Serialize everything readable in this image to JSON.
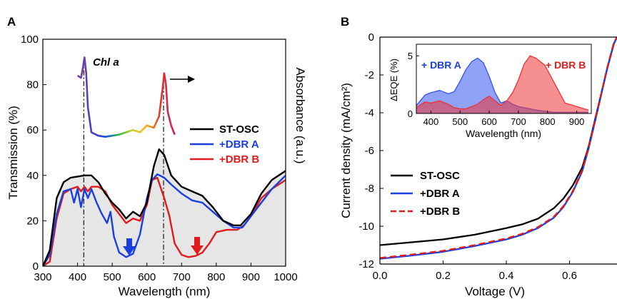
{
  "panels": {
    "a_letter": "A",
    "b_letter": "B"
  },
  "chart_data": [
    {
      "panel": "A",
      "type": "line",
      "xlabel": "Wavelength (nm)",
      "ylabel": "Transmission (%)",
      "ylabel_right": "Absorbance (a.u.)",
      "xlim": [
        300,
        1000
      ],
      "ylim": [
        0,
        100
      ],
      "xticks": [
        "300",
        "400",
        "500",
        "600",
        "700",
        "800",
        "900",
        "1000"
      ],
      "yticks": [
        "0",
        "20",
        "40",
        "60",
        "80",
        "100"
      ],
      "legend_position": "center-right",
      "series": [
        {
          "name": "ST-OSC",
          "color": "#000000",
          "x": [
            300,
            320,
            340,
            360,
            380,
            400,
            420,
            440,
            460,
            480,
            500,
            520,
            540,
            560,
            580,
            600,
            620,
            635,
            650,
            670,
            700,
            730,
            760,
            790,
            820,
            850,
            870,
            900,
            930,
            960,
            1000
          ],
          "y": [
            0,
            7,
            30,
            37,
            39,
            39.5,
            40,
            40,
            37,
            32,
            28,
            25,
            21,
            24,
            22,
            28,
            44,
            51.5,
            49,
            40,
            35,
            33,
            31,
            26,
            20,
            18,
            18,
            23,
            32,
            38,
            42
          ]
        },
        {
          "name": "+DBR A",
          "color": "#1a3fe0",
          "x": [
            300,
            320,
            340,
            360,
            380,
            390,
            400,
            410,
            420,
            430,
            440,
            455,
            470,
            485,
            495,
            505,
            520,
            540,
            560,
            580,
            600,
            615,
            630,
            650,
            670,
            700,
            730,
            760,
            790,
            820,
            850,
            875,
            900,
            930,
            960,
            1000
          ],
          "y": [
            0,
            5,
            23,
            33,
            34,
            28,
            34,
            26,
            34,
            30,
            34,
            28,
            23,
            19,
            24,
            13,
            6,
            4,
            5.5,
            14,
            30,
            38,
            40.5,
            39,
            36,
            32,
            29,
            28,
            24,
            20,
            17,
            17,
            22,
            28,
            34,
            40
          ]
        },
        {
          "name": "+DBR B",
          "color": "#e01b1b",
          "x": [
            300,
            320,
            340,
            360,
            380,
            400,
            410,
            420,
            430,
            440,
            460,
            480,
            500,
            520,
            540,
            560,
            580,
            600,
            615,
            630,
            650,
            665,
            680,
            700,
            720,
            740,
            760,
            780,
            800,
            830,
            860,
            880,
            900,
            930,
            960,
            1000
          ],
          "y": [
            0,
            2,
            21,
            32,
            34,
            35,
            33,
            35,
            33,
            35,
            35,
            33,
            27,
            23,
            19,
            21,
            20,
            27,
            38,
            39,
            30,
            22,
            10,
            5,
            4,
            4.5,
            6,
            10,
            15,
            16,
            16,
            18,
            22,
            30,
            34,
            38
          ]
        },
        {
          "name": "Chl a",
          "type": "absorbance",
          "x": [
            400,
            410,
            415,
            420,
            425,
            430,
            440,
            460,
            480,
            500,
            520,
            540,
            560,
            580,
            600,
            620,
            635,
            645,
            650,
            655,
            660,
            670,
            680
          ],
          "y": [
            84,
            83,
            87,
            92,
            85,
            70,
            59,
            57.5,
            57,
            57.5,
            58,
            59,
            60,
            59,
            62,
            61,
            66,
            78,
            85,
            80,
            68,
            62,
            58
          ]
        }
      ],
      "annotations": [
        "Chl a"
      ]
    },
    {
      "panel": "B",
      "type": "line",
      "xlabel": "Voltage (V)",
      "ylabel": "Current density (mA/cm²)",
      "xlim": [
        0.0,
        0.75
      ],
      "ylim": [
        -12,
        0
      ],
      "xticks": [
        "0.0",
        "0.2",
        "0.4",
        "0.6"
      ],
      "yticks": [
        "0",
        "-2",
        "-4",
        "-6",
        "-8",
        "-10",
        "-12"
      ],
      "legend_position": "bottom-left",
      "series": [
        {
          "name": "ST-OSC",
          "color": "#000000",
          "dash": "solid",
          "x": [
            0,
            0.1,
            0.2,
            0.3,
            0.4,
            0.45,
            0.5,
            0.55,
            0.58,
            0.61,
            0.64,
            0.66,
            0.68,
            0.7,
            0.72,
            0.74,
            0.75
          ],
          "y": [
            -11.0,
            -10.85,
            -10.7,
            -10.45,
            -10.1,
            -9.9,
            -9.6,
            -9.05,
            -8.55,
            -7.85,
            -6.9,
            -5.8,
            -4.4,
            -3.0,
            -1.6,
            -0.35,
            0
          ]
        },
        {
          "name": "+DBR A",
          "color": "#1a3fe0",
          "dash": "solid",
          "x": [
            0,
            0.1,
            0.2,
            0.3,
            0.4,
            0.45,
            0.5,
            0.55,
            0.58,
            0.61,
            0.64,
            0.66,
            0.68,
            0.7,
            0.72,
            0.74,
            0.75
          ],
          "y": [
            -11.72,
            -11.55,
            -11.35,
            -11.05,
            -10.7,
            -10.45,
            -10.1,
            -9.55,
            -9.0,
            -8.2,
            -7.1,
            -5.9,
            -4.5,
            -3.05,
            -1.6,
            -0.35,
            0
          ]
        },
        {
          "name": "+DBR B",
          "color": "#e01b1b",
          "dash": "dashed",
          "x": [
            0,
            0.1,
            0.2,
            0.3,
            0.4,
            0.45,
            0.5,
            0.55,
            0.58,
            0.61,
            0.64,
            0.66,
            0.68,
            0.7,
            0.72,
            0.74,
            0.75
          ],
          "y": [
            -11.68,
            -11.5,
            -11.3,
            -11.0,
            -10.65,
            -10.4,
            -10.05,
            -9.5,
            -8.95,
            -8.15,
            -7.05,
            -5.85,
            -4.45,
            -3.0,
            -1.55,
            -0.3,
            0
          ]
        }
      ]
    },
    {
      "panel": "B-inset",
      "type": "area",
      "xlabel": "Wavelength (nm)",
      "ylabel": "ΔEQE (%)",
      "xlim": [
        350,
        950
      ],
      "ylim": [
        0,
        6
      ],
      "xticks": [
        "400",
        "500",
        "600",
        "700",
        "800",
        "900"
      ],
      "yticks": [
        "0",
        "5"
      ],
      "series": [
        {
          "name": "+ DBR A",
          "color": "#3355ee",
          "x": [
            350,
            380,
            400,
            430,
            460,
            480,
            500,
            520,
            540,
            560,
            580,
            600,
            620,
            640,
            660,
            680,
            700,
            720,
            740,
            760,
            790,
            820,
            860,
            900,
            940
          ],
          "y": [
            0.7,
            1.6,
            1.8,
            2.0,
            1.7,
            1.9,
            2.8,
            3.8,
            4.5,
            4.8,
            4.4,
            3.2,
            1.8,
            0.9,
            1.1,
            0.8,
            0.6,
            0.5,
            0.4,
            0.3,
            0.2,
            0.1,
            0.1,
            0.1,
            0.1
          ]
        },
        {
          "name": "+ DBR B",
          "color": "#ee3333",
          "x": [
            350,
            380,
            400,
            430,
            460,
            480,
            500,
            520,
            540,
            560,
            580,
            600,
            620,
            640,
            660,
            680,
            700,
            720,
            740,
            760,
            790,
            820,
            860,
            900,
            940
          ],
          "y": [
            0.5,
            1.0,
            0.9,
            1.1,
            0.8,
            0.5,
            0.4,
            0.4,
            0.6,
            0.8,
            1.2,
            1.5,
            1.1,
            0.7,
            1.1,
            1.8,
            2.9,
            4.3,
            5.0,
            4.8,
            4.2,
            2.8,
            0.9,
            0.6,
            0.3
          ]
        }
      ]
    }
  ]
}
